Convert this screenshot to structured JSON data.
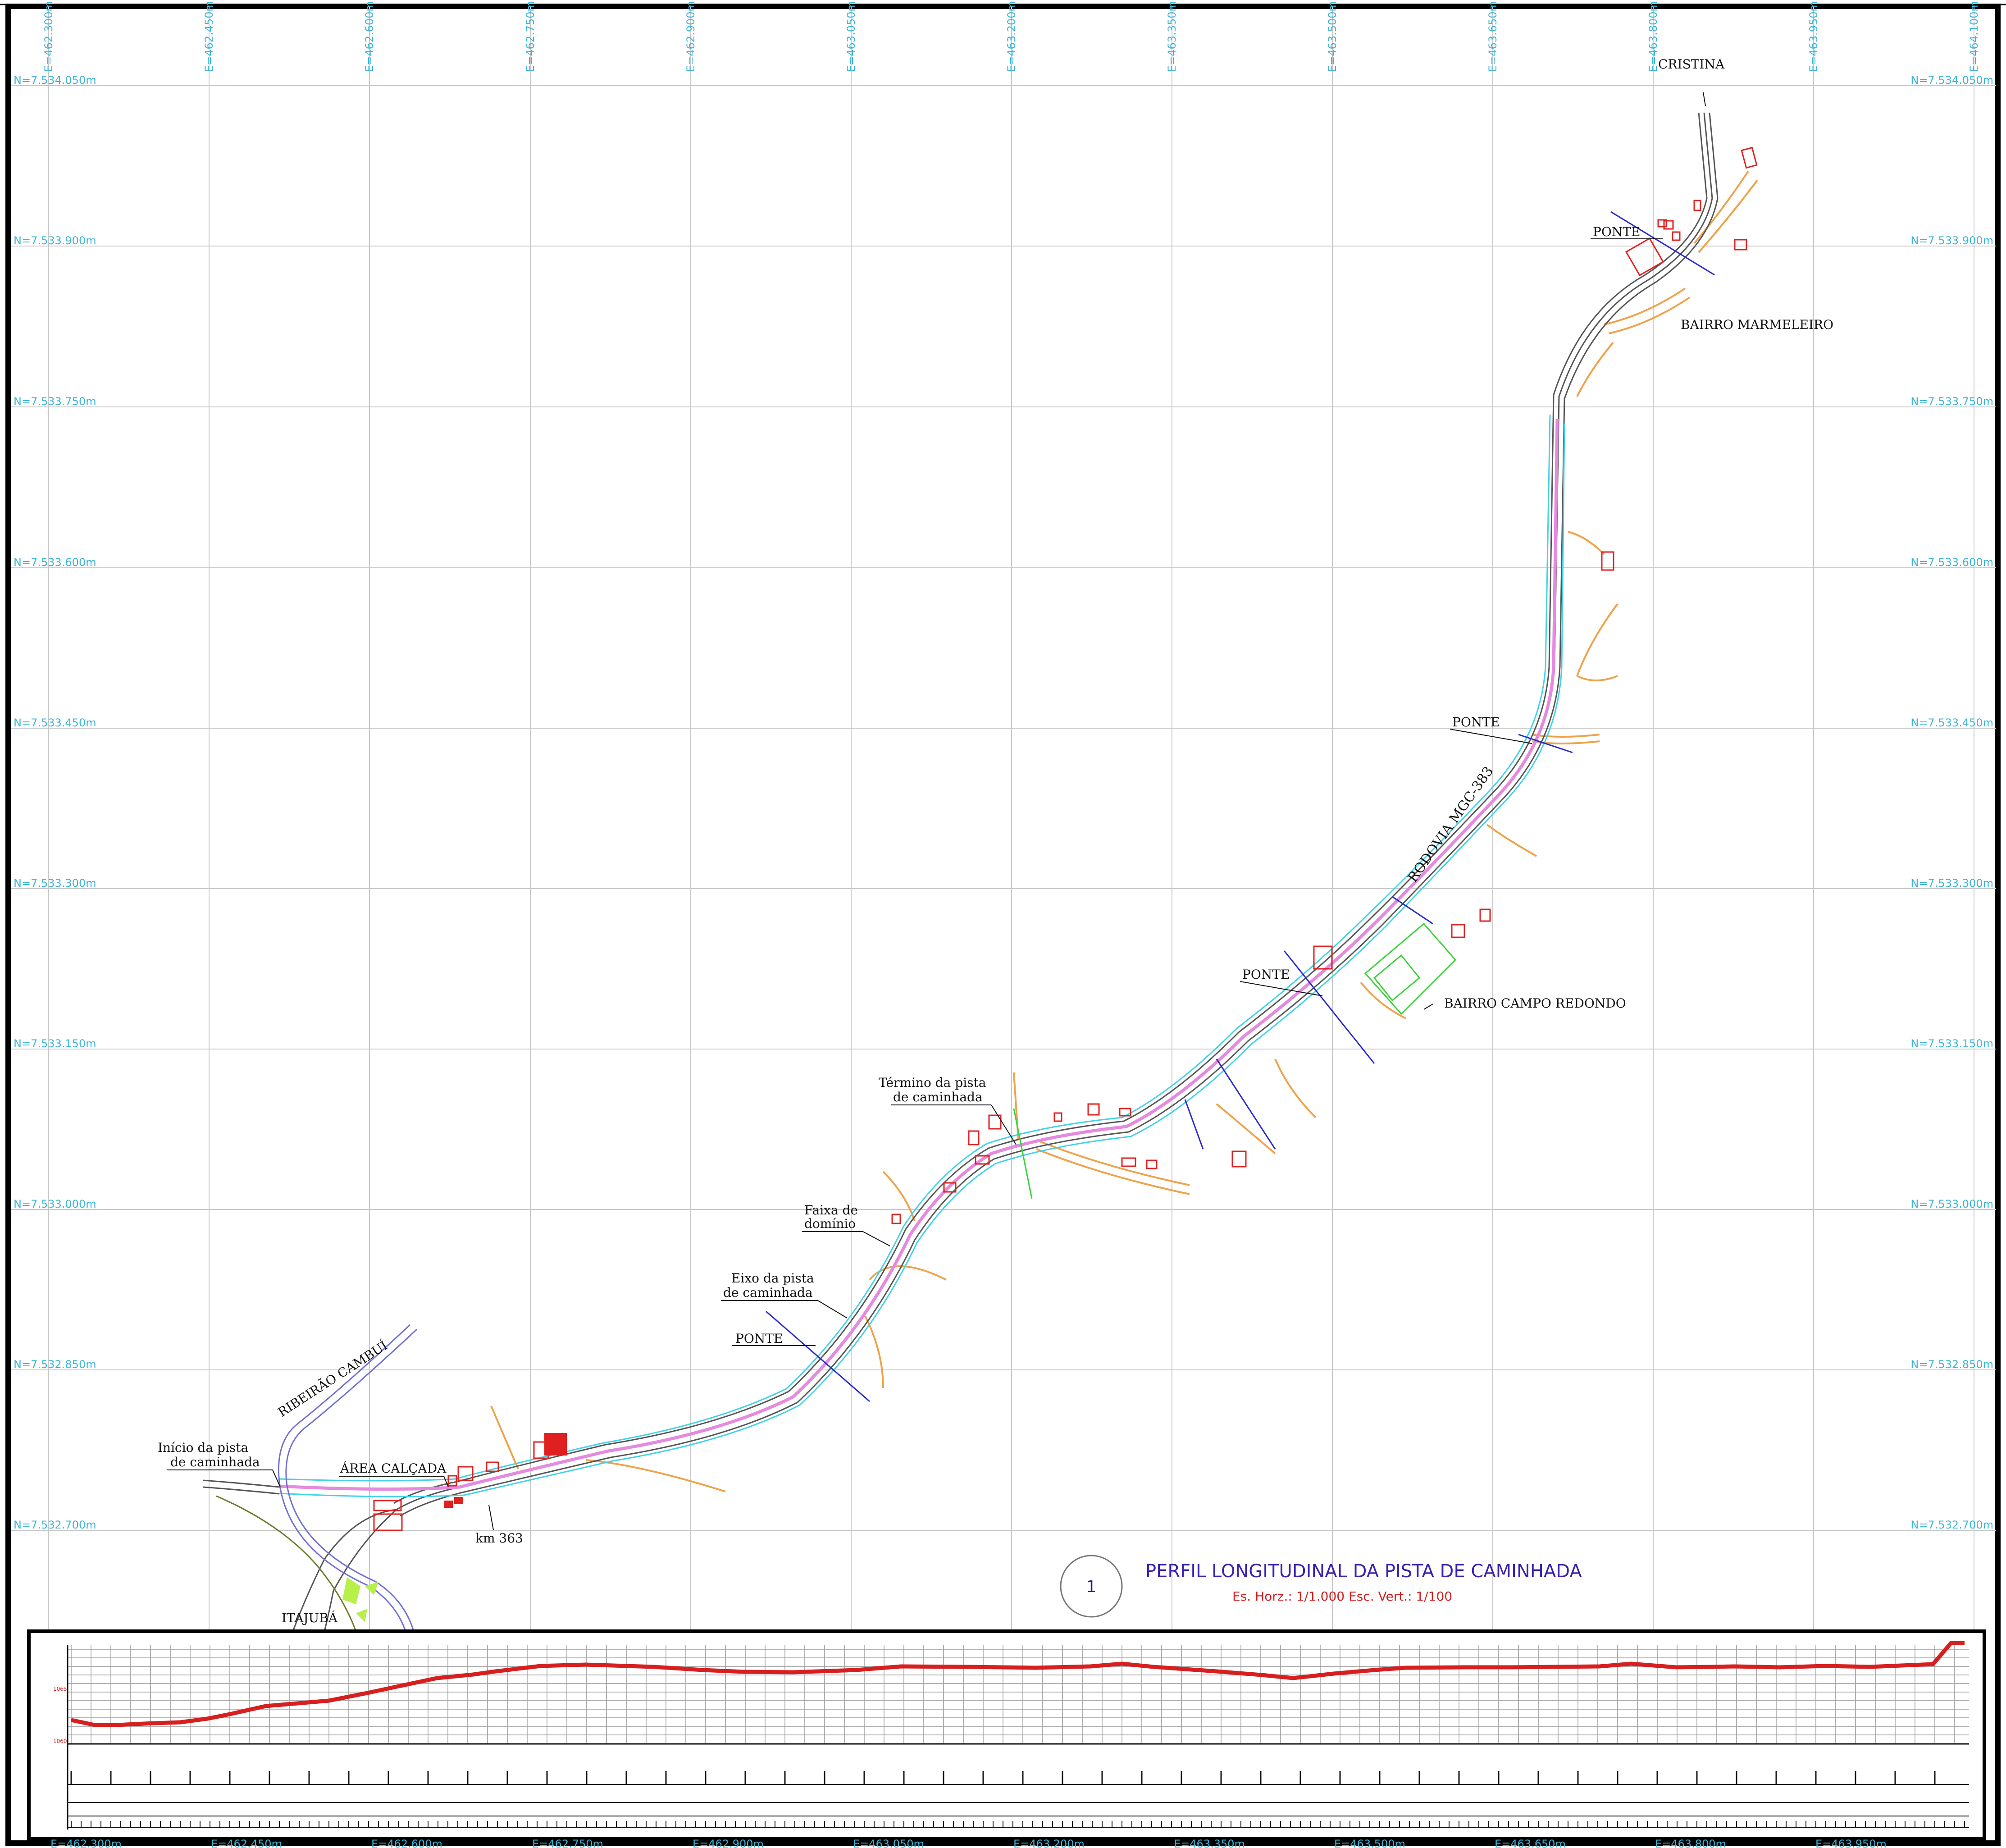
{
  "grid": {
    "easting_labels": [
      "E=462.300m",
      "E=462.450m",
      "E=462.600m",
      "E=462.750m",
      "E=462.900m",
      "E=463.050m",
      "E=463.200m",
      "E=463.350m",
      "E=463.500m",
      "E=463.650m",
      "E=463.800m",
      "E=463.950m",
      "E=464.100m"
    ],
    "northing_labels": [
      "N=7.534.050m",
      "N=7.533.900m",
      "N=7.533.750m",
      "N=7.533.600m",
      "N=7.533.450m",
      "N=7.533.300m",
      "N=7.533.150m",
      "N=7.533.000m",
      "N=7.532.850m",
      "N=7.532.700m"
    ],
    "bottom_easting_labels": [
      "E=462.300m",
      "E=462.450m",
      "E=462.600m",
      "E=462.750m",
      "E=462.900m",
      "E=463.050m",
      "E=463.200m",
      "E=463.350m",
      "E=463.500m",
      "E=463.650m",
      "E=463.800m",
      "E=463.950m"
    ]
  },
  "labels": {
    "cristina": "CRISTINA",
    "ponte": "PONTE",
    "bairro_marmeleiro": "BAIRRO  MARMELEIRO",
    "rodovia": "RODOVIA  MGC-383",
    "bairro_campo_redondo": "BAIRRO  CAMPO  REDONDO",
    "termino_1": "Término  da  pista",
    "termino_2": "de  caminhada",
    "faixa_1": "Faixa  de",
    "faixa_2": "domínio",
    "eixo_1": "Eixo  da  pista",
    "eixo_2": "de  caminhada",
    "ribeirao": "RIBEIRÃO  CAMBUÍ",
    "inicio_1": "Início  da  pista",
    "inicio_2": "de  caminhada",
    "area_calcada": "ÁREA  CALÇADA",
    "km": "km  363",
    "itajuba": "ITAJUBÁ"
  },
  "profile_title": {
    "number": "1",
    "title": "PERFIL LONGITUDINAL DA PISTA DE CAMINHADA",
    "scale": "Es. Horz.: 1/1.000     Esc. Vert.: 1/100"
  },
  "colors": {
    "grid": "#c8c8c8",
    "coord": "#3fb6d6",
    "road": "#555555",
    "path_pink": "#e48adf",
    "path_cyan": "#3fd3e8",
    "orange": "#f0a24a",
    "red": "#e02020",
    "blue": "#2a2ad0",
    "green": "#3ad23a",
    "profile_line": "#d81f1f"
  }
}
